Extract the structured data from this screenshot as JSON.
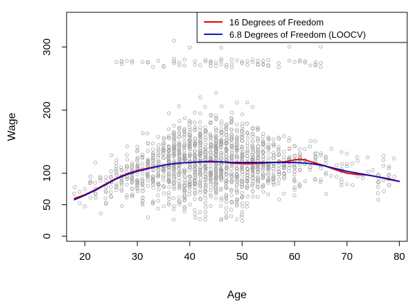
{
  "chart_data": {
    "type": "scatter",
    "xlabel": "Age",
    "ylabel": "Wage",
    "xlim": [
      16.5,
      81.5
    ],
    "ylim": [
      -8,
      355
    ],
    "x_ticks": [
      20,
      30,
      40,
      50,
      60,
      70,
      80
    ],
    "y_ticks": [
      0,
      50,
      100,
      200,
      300
    ],
    "legend_position": "top-right",
    "grid": false,
    "colors": {
      "points": "#a6a6a6",
      "series_16df": "#e00000",
      "series_loocv": "#1414b4"
    },
    "series": [
      {
        "name": "16 Degrees of Freedom",
        "color": "#e00000",
        "x": [
          18,
          20,
          22,
          24,
          26,
          28,
          30,
          32,
          34,
          36,
          38,
          40,
          42,
          44,
          46,
          48,
          50,
          52,
          54,
          56,
          58,
          60,
          61,
          62,
          64,
          66,
          68,
          70,
          72,
          74,
          76,
          78,
          80
        ],
        "y": [
          60,
          66,
          74,
          83,
          92,
          99,
          104,
          108,
          111,
          114,
          116,
          117,
          118,
          119,
          118,
          116,
          115,
          115,
          116,
          117,
          118,
          121,
          122,
          121,
          116,
          111,
          105,
          100,
          98,
          97,
          94,
          90,
          87
        ]
      },
      {
        "name": "6.8 Degrees of Freedom (LOOCV)",
        "color": "#1414b4",
        "x": [
          18,
          20,
          22,
          24,
          26,
          28,
          30,
          32,
          34,
          36,
          38,
          40,
          42,
          44,
          46,
          48,
          50,
          52,
          54,
          56,
          58,
          60,
          62,
          64,
          66,
          68,
          70,
          72,
          74,
          76,
          78,
          80
        ],
        "y": [
          58,
          65,
          73,
          82,
          91,
          98,
          103,
          107,
          111,
          114,
          116,
          117,
          118,
          118,
          118,
          117,
          117,
          117,
          117,
          117,
          117,
          117,
          116,
          114,
          111,
          107,
          103,
          100,
          97,
          94,
          91,
          87
        ]
      }
    ]
  }
}
